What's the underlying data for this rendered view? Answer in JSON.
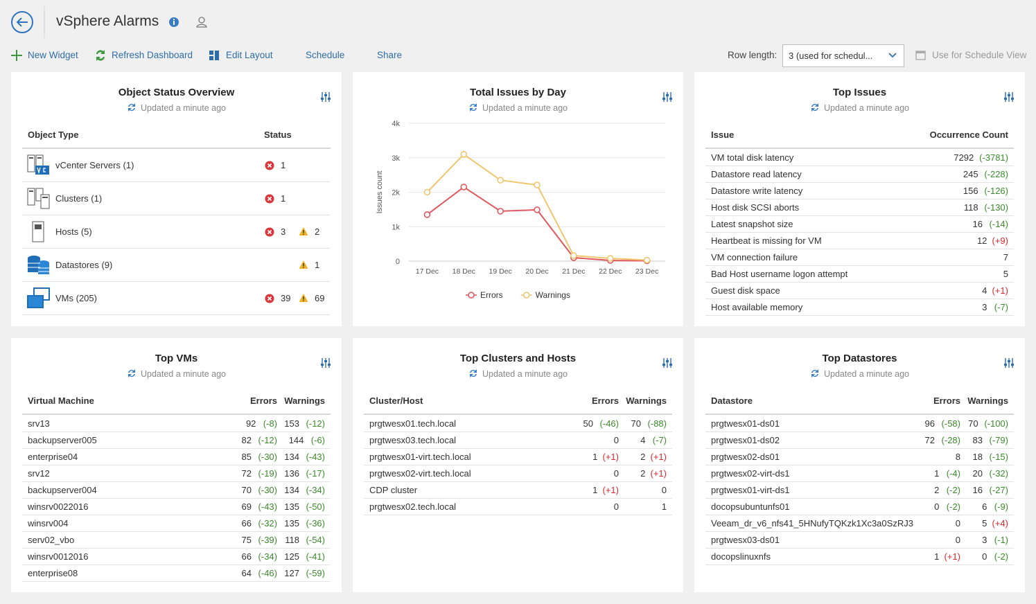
{
  "header": {
    "title": "vSphere Alarms"
  },
  "toolbar": {
    "actions": [
      "New Widget",
      "Refresh Dashboard",
      "Edit Layout",
      "Schedule",
      "Share"
    ],
    "row_length_label": "Row length:",
    "row_length_value": "3 (used for schedul...",
    "schedule_view": "Use for Schedule View"
  },
  "status_widget": {
    "title": "Object Status Overview",
    "updated": "Updated a minute ago",
    "columns": [
      "Object Type",
      "Status"
    ],
    "rows": [
      {
        "name": "vCenter Servers (1)",
        "errors": 1
      },
      {
        "name": "Clusters (1)",
        "errors": 1
      },
      {
        "name": "Hosts (5)",
        "errors": 3,
        "warnings": 2
      },
      {
        "name": "Datastores (9)",
        "warnings": 1
      },
      {
        "name": "VMs (205)",
        "errors": 39,
        "warnings": 69
      }
    ]
  },
  "chart_data": {
    "type": "line",
    "title": "Total Issues by Day",
    "subtitle": "Updated a minute ago",
    "y_label": "Issues count",
    "categories": [
      "17 Dec",
      "18 Dec",
      "19 Dec",
      "20 Dec",
      "21 Dec",
      "22 Dec",
      "23 Dec"
    ],
    "series": [
      {
        "name": "Errors",
        "color": "#e0585d",
        "values": [
          1350,
          2150,
          1450,
          1490,
          100,
          20,
          10
        ]
      },
      {
        "name": "Warnings",
        "color": "#efc66c",
        "values": [
          2000,
          3100,
          2350,
          2210,
          160,
          80,
          30
        ]
      }
    ],
    "ylim": [
      0,
      4000
    ],
    "yticks": [
      0,
      {
        "value": 1000,
        "label": "1k"
      },
      {
        "value": 2000,
        "label": "2k"
      },
      {
        "value": 3000,
        "label": "3k"
      },
      {
        "value": 4000,
        "label": "4k"
      }
    ],
    "grid": true,
    "legend": "bottom"
  },
  "issues_widget": {
    "title": "Top Issues",
    "updated": "Updated a minute ago",
    "columns": [
      "Issue",
      "Occurrence Count"
    ],
    "rows": [
      {
        "name": "VM total disk latency",
        "count": 7292,
        "delta": "(-3781)"
      },
      {
        "name": "Datastore read latency",
        "count": 245,
        "delta": "(-228)"
      },
      {
        "name": "Datastore write latency",
        "count": 156,
        "delta": "(-126)"
      },
      {
        "name": "Host disk SCSI aborts",
        "count": 118,
        "delta": "(-130)"
      },
      {
        "name": "Latest snapshot size",
        "count": 16,
        "delta": "(-14)"
      },
      {
        "name": "Heartbeat is missing for VM",
        "count": 12,
        "delta": "(+9)"
      },
      {
        "name": "VM connection failure",
        "count": 7
      },
      {
        "name": "Bad Host username logon attempt",
        "count": 5
      },
      {
        "name": "Guest disk space",
        "count": 4,
        "delta": "(+1)"
      },
      {
        "name": "Host available memory",
        "count": 3,
        "delta": "(-7)"
      }
    ]
  },
  "tables": [
    {
      "title": "Top VMs",
      "updated": "Updated a minute ago",
      "columns": [
        "Virtual Machine",
        "Errors",
        "Warnings"
      ],
      "rows": [
        {
          "name": "srv13",
          "errors": 92,
          "errors_delta": "(-8)",
          "warnings": 153,
          "warnings_delta": "(-12)"
        },
        {
          "name": "backupserver005",
          "errors": 82,
          "errors_delta": "(-12)",
          "warnings": 144,
          "warnings_delta": "(-6)"
        },
        {
          "name": "enterprise04",
          "errors": 85,
          "errors_delta": "(-30)",
          "warnings": 134,
          "warnings_delta": "(-43)"
        },
        {
          "name": "srv12",
          "errors": 72,
          "errors_delta": "(-19)",
          "warnings": 136,
          "warnings_delta": "(-17)"
        },
        {
          "name": "backupserver004",
          "errors": 70,
          "errors_delta": "(-30)",
          "warnings": 134,
          "warnings_delta": "(-34)"
        },
        {
          "name": "winsrv0022016",
          "errors": 69,
          "errors_delta": "(-43)",
          "warnings": 135,
          "warnings_delta": "(-50)"
        },
        {
          "name": "winsrv004",
          "errors": 66,
          "errors_delta": "(-32)",
          "warnings": 135,
          "warnings_delta": "(-36)"
        },
        {
          "name": "serv02_vbo",
          "errors": 75,
          "errors_delta": "(-39)",
          "warnings": 118,
          "warnings_delta": "(-54)"
        },
        {
          "name": "winsrv0012016",
          "errors": 66,
          "errors_delta": "(-34)",
          "warnings": 125,
          "warnings_delta": "(-41)"
        },
        {
          "name": "enterprise08",
          "errors": 64,
          "errors_delta": "(-46)",
          "warnings": 127,
          "warnings_delta": "(-59)"
        }
      ]
    },
    {
      "title": "Top Clusters and Hosts",
      "updated": "Updated a minute ago",
      "columns": [
        "Cluster/Host",
        "Errors",
        "Warnings"
      ],
      "rows": [
        {
          "name": "prgtwesx01.tech.local",
          "errors": 50,
          "errors_delta": "(-46)",
          "warnings": 70,
          "warnings_delta": "(-88)"
        },
        {
          "name": "prgtwesx03.tech.local",
          "errors": 0,
          "warnings": 4,
          "warnings_delta": "(-7)"
        },
        {
          "name": "prgtwesx01-virt.tech.local",
          "errors": 1,
          "errors_delta": "(+1)",
          "warnings": 2,
          "warnings_delta": "(+1)"
        },
        {
          "name": "prgtwesx02-virt.tech.local",
          "errors": 0,
          "warnings": 2,
          "warnings_delta": "(+1)"
        },
        {
          "name": "CDP cluster",
          "errors": 1,
          "errors_delta": "(+1)",
          "warnings": 0
        },
        {
          "name": "prgtwesx02.tech.local",
          "errors": 0,
          "warnings": 1
        }
      ]
    },
    {
      "title": "Top Datastores",
      "updated": "Updated a minute ago",
      "columns": [
        "Datastore",
        "Errors",
        "Warnings"
      ],
      "rows": [
        {
          "name": "prgtwesx01-ds01",
          "errors": 96,
          "errors_delta": "(-58)",
          "warnings": 70,
          "warnings_delta": "(-100)"
        },
        {
          "name": "prgtwesx01-ds02",
          "errors": 72,
          "errors_delta": "(-28)",
          "warnings": 83,
          "warnings_delta": "(-79)"
        },
        {
          "name": "prgtwesx02-ds01",
          "errors": 8,
          "warnings": 18,
          "warnings_delta": "(-15)"
        },
        {
          "name": "prgtwesx02-virt-ds1",
          "errors": 1,
          "errors_delta": "(-4)",
          "warnings": 20,
          "warnings_delta": "(-32)"
        },
        {
          "name": "prgtwesx01-virt-ds1",
          "errors": 2,
          "errors_delta": "(-2)",
          "warnings": 16,
          "warnings_delta": "(-27)"
        },
        {
          "name": "docopsubuntunfs01",
          "errors": 0,
          "errors_delta": "(-2)",
          "warnings": 6,
          "warnings_delta": "(-9)"
        },
        {
          "name": "Veeam_dr_v6_nfs41_5HNufyTQKzk1Xc3a0SzRJ3",
          "errors": 0,
          "warnings": 5,
          "warnings_delta": "(+4)"
        },
        {
          "name": "prgtwesx03-ds01",
          "errors": 0,
          "warnings": 3,
          "warnings_delta": "(-1)"
        },
        {
          "name": "docopslinuxnfs",
          "errors": 1,
          "errors_delta": "(+1)",
          "warnings": 0,
          "warnings_delta": "(-2)"
        }
      ]
    }
  ]
}
